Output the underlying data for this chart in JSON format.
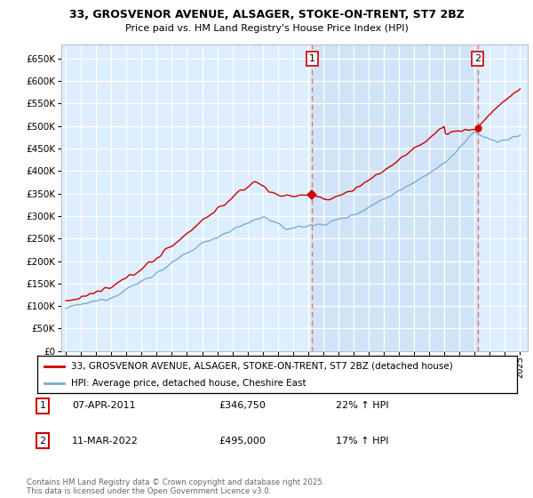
{
  "title": "33, GROSVENOR AVENUE, ALSAGER, STOKE-ON-TRENT, ST7 2BZ",
  "subtitle": "Price paid vs. HM Land Registry's House Price Index (HPI)",
  "ytick_values": [
    0,
    50000,
    100000,
    150000,
    200000,
    250000,
    300000,
    350000,
    400000,
    450000,
    500000,
    550000,
    600000,
    650000
  ],
  "ylim": [
    0,
    680000
  ],
  "xlim_start": 1994.7,
  "xlim_end": 2025.5,
  "marker1_x": 2011.27,
  "marker1_y": 346750,
  "marker2_x": 2022.19,
  "marker2_y": 495000,
  "vline1_x": 2011.27,
  "vline2_x": 2022.19,
  "red_color": "#cc0000",
  "blue_color": "#7aadd4",
  "vline_color": "#e87070",
  "plot_bg": "#ddeeff",
  "shade_bg": "#cce0f5",
  "grid_color": "#ffffff",
  "legend_line1": "33, GROSVENOR AVENUE, ALSAGER, STOKE-ON-TRENT, ST7 2BZ (detached house)",
  "legend_line2": "HPI: Average price, detached house, Cheshire East",
  "footer": "Contains HM Land Registry data © Crown copyright and database right 2025.\nThis data is licensed under the Open Government Licence v3.0.",
  "xtick_years": [
    1995,
    1996,
    1997,
    1998,
    1999,
    2000,
    2001,
    2002,
    2003,
    2004,
    2005,
    2006,
    2007,
    2008,
    2009,
    2010,
    2011,
    2012,
    2013,
    2014,
    2015,
    2016,
    2017,
    2018,
    2019,
    2020,
    2021,
    2022,
    2023,
    2024,
    2025
  ]
}
